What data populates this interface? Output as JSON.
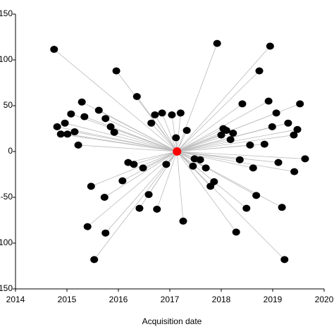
{
  "chart_data": {
    "type": "scatter",
    "xlabel": "Acquisition date",
    "xlim": [
      2014,
      2020
    ],
    "xticks": [
      2014,
      2015,
      2016,
      2017,
      2018,
      2019,
      2020
    ],
    "ylim": [
      -150,
      150
    ],
    "yticks": [
      150,
      100,
      50,
      0,
      -50,
      -100,
      -150
    ],
    "series": [
      {
        "color": "#000000",
        "x": [
          2014.75,
          2014.81,
          2014.88,
          2014.96,
          2015.01,
          2015.08,
          2015.15,
          2015.22,
          2015.29,
          2015.34,
          2015.62,
          2015.75,
          2015.85,
          2015.92,
          2015.96,
          2015.47,
          2015.4,
          2015.73,
          2015.75,
          2015.53,
          2016.08,
          2016.19,
          2016.3,
          2016.48,
          2016.36,
          2016.59,
          2016.41,
          2016.64,
          2016.71,
          2016.85,
          2016.93,
          2016.75,
          2017.04,
          2017.12,
          2017.21,
          2017.33,
          2017.26,
          2017.48,
          2017.45,
          2017.59,
          2017.7,
          2017.92,
          2017.79,
          2017.86,
          2018.0,
          2018.04,
          2018.1,
          2018.23,
          2018.18,
          2018.36,
          2018.41,
          2018.29,
          2018.56,
          2018.62,
          2018.49,
          2018.68,
          2018.74,
          2018.84,
          2018.92,
          2018.95,
          2018.99,
          2019.07,
          2019.11,
          2019.18,
          2019.23,
          2019.3,
          2019.42,
          2019.41,
          2019.48,
          2019.53,
          2019.63
        ],
        "values": [
          111.5,
          27,
          19,
          31,
          19,
          41,
          21.5,
          7,
          54,
          38,
          45,
          36,
          27,
          21,
          88,
          -38,
          -82,
          -50,
          -89,
          -118,
          -32,
          -12,
          -14,
          -18,
          60,
          -47,
          -62,
          31,
          40,
          42,
          -14,
          -63,
          40,
          15,
          42,
          23,
          -76,
          -8,
          -16,
          -9,
          -18,
          118,
          -38,
          -33,
          18,
          25,
          23,
          20,
          13,
          -9,
          52,
          -88,
          7,
          -18,
          -62,
          -48,
          88,
          8,
          55,
          115,
          27,
          42,
          -12,
          -61,
          -118,
          31,
          -22,
          18,
          24,
          52,
          -8
        ]
      },
      {
        "color": "#ff0000",
        "x": [
          2017.14
        ],
        "values": [
          0
        ]
      }
    ]
  }
}
